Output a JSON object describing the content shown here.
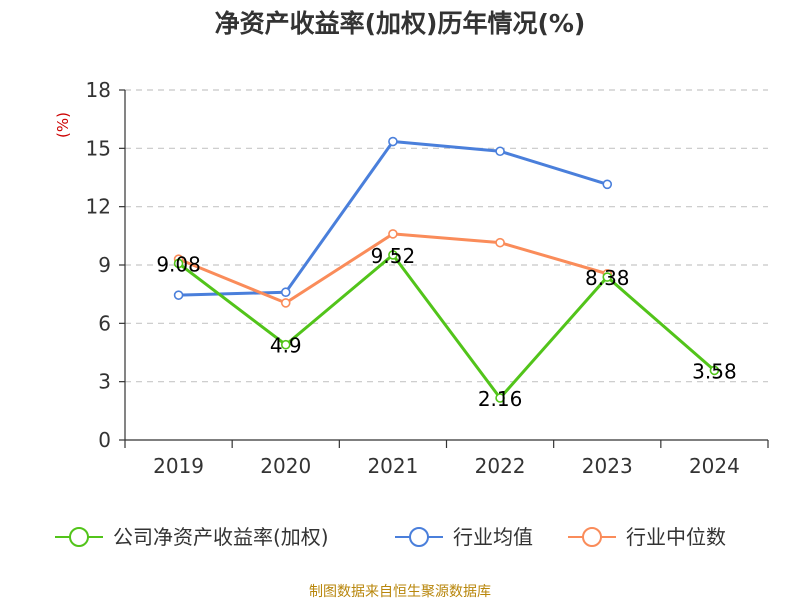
{
  "chart_data": {
    "type": "line",
    "title": "净资产收益率(加权)历年情况(%)",
    "ylabel": "(%)",
    "ylim": [
      0,
      18
    ],
    "yticks": [
      0,
      3,
      6,
      9,
      12,
      15,
      18
    ],
    "categories": [
      "2019",
      "2020",
      "2021",
      "2022",
      "2023",
      "2024"
    ],
    "series": [
      {
        "name": "公司净资产收益率(加权)",
        "color": "#52c41a",
        "values": [
          9.08,
          4.9,
          9.52,
          2.16,
          8.38,
          3.58
        ],
        "labels": [
          "9.08",
          "4.9",
          "9.52",
          "2.16",
          "8.38",
          "3.58"
        ]
      },
      {
        "name": "行业均值",
        "color": "#4a7fdb",
        "values": [
          7.45,
          7.6,
          15.35,
          14.85,
          13.15,
          null
        ],
        "labels": []
      },
      {
        "name": "行业中位数",
        "color": "#fa8c5a",
        "values": [
          9.3,
          7.05,
          10.6,
          10.15,
          8.55,
          null
        ],
        "labels": []
      }
    ],
    "grid": true,
    "legend_position": "bottom"
  },
  "source": "制图数据来自恒生聚源数据库"
}
